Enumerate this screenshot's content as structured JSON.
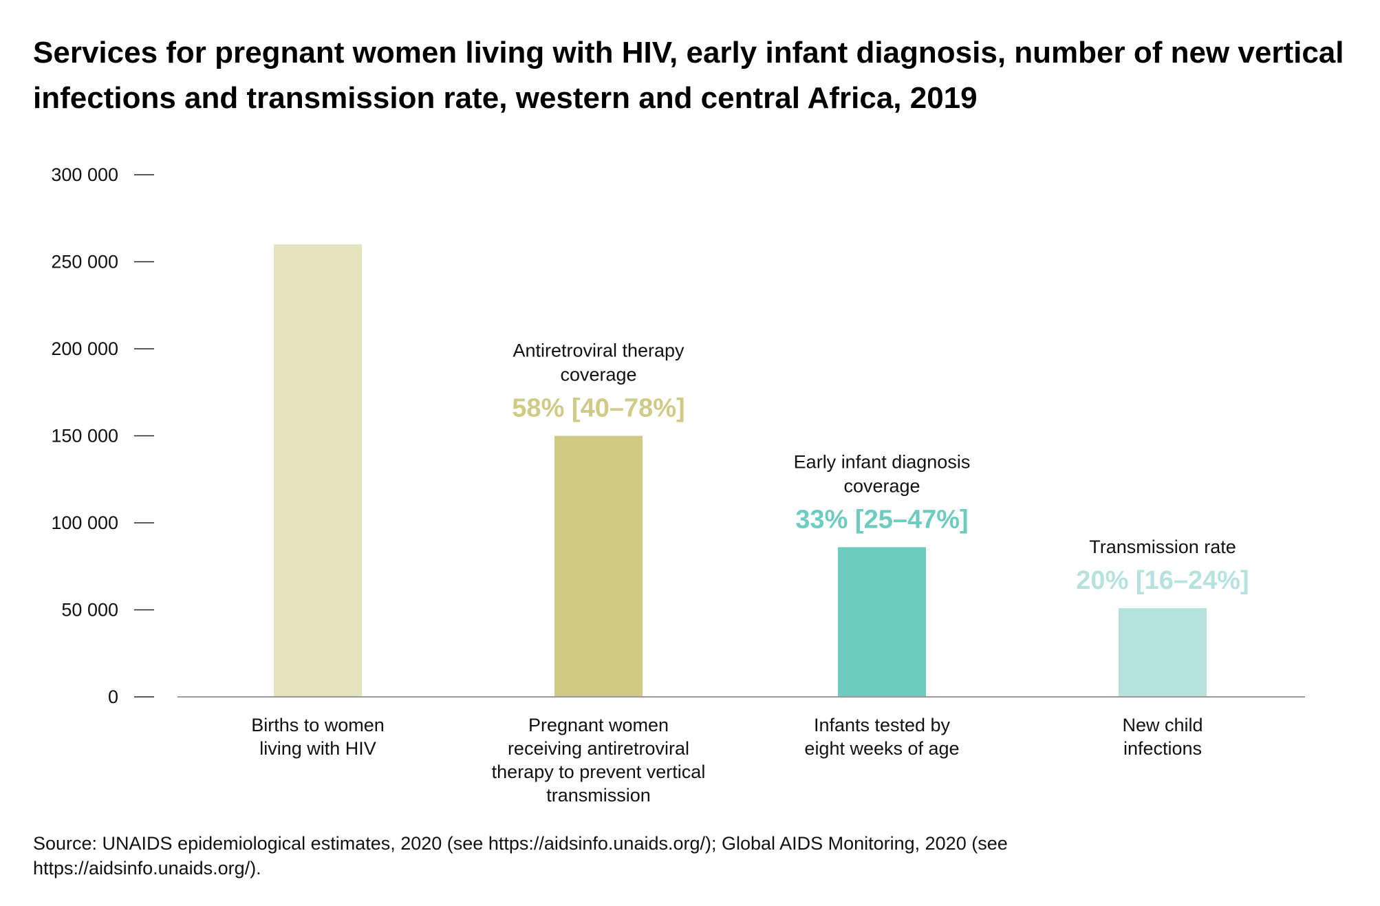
{
  "title": "Services for pregnant women living with HIV, early infant diagnosis, number of new vertical infections and transmission rate, western and central Africa, 2019",
  "source": "Source: UNAIDS epidemiological estimates, 2020 (see https://aidsinfo.unaids.org/); Global AIDS Monitoring, 2020 (see https://aidsinfo.unaids.org/).",
  "colors": {
    "births": "#e6e3bf",
    "art": "#cfcb86",
    "eid": "#6ecbbf",
    "transmission": "#b6e2de",
    "axis": "#9a9a9a",
    "text": "#111111"
  },
  "chart_data": {
    "type": "bar",
    "title": "Services for pregnant women living with HIV, early infant diagnosis, number of new vertical infections and transmission rate, western and central Africa, 2019",
    "xlabel": "",
    "ylabel": "",
    "ylim": [
      0,
      300000
    ],
    "yticks": [
      0,
      50000,
      100000,
      150000,
      200000,
      250000,
      300000
    ],
    "ytick_labels": [
      "0",
      "50 000",
      "100 000",
      "150 000",
      "200 000",
      "250 000",
      "300 000"
    ],
    "grid": false,
    "categories": [
      [
        "Births to women",
        "living with HIV"
      ],
      [
        "Pregnant women",
        "receiving antiretroviral",
        "therapy to prevent vertical",
        "transmission"
      ],
      [
        "Infants tested by",
        "eight weeks of age"
      ],
      [
        "New child",
        "infections"
      ]
    ],
    "values": [
      260000,
      150000,
      86000,
      51000
    ],
    "bar_colors": [
      "#e6e3bf",
      "#cfcb86",
      "#6ecbbf",
      "#b6e2de"
    ],
    "annotations": [
      null,
      {
        "label": [
          "Antiretroviral therapy",
          "coverage"
        ],
        "value": "58% [40–78%]",
        "color": "#cfcb86"
      },
      {
        "label": [
          "Early infant diagnosis",
          "coverage"
        ],
        "value": "33% [25–47%]",
        "color": "#6ecbbf"
      },
      {
        "label": [
          "Transmission rate"
        ],
        "value": "20% [16–24%]",
        "color": "#b6e2de"
      }
    ]
  }
}
